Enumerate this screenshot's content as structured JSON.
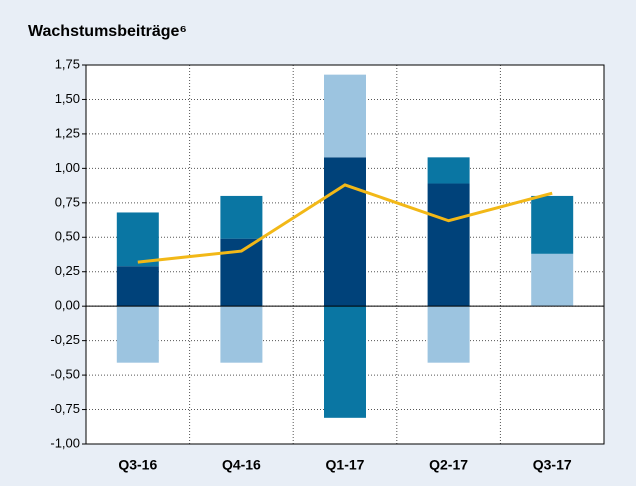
{
  "chart_data": {
    "type": "bar",
    "stacked": true,
    "title": "Wachstumsbeiträge⁶",
    "categories": [
      "Q3-16",
      "Q4-16",
      "Q1-17",
      "Q2-17",
      "Q3-17"
    ],
    "series": [
      {
        "color": "#00427a",
        "values": [
          0.29,
          0.49,
          1.08,
          0.89,
          0
        ]
      },
      {
        "color": "#9cc4e0",
        "values": [
          -0.41,
          -0.41,
          0.6,
          -0.41,
          0.38
        ]
      },
      {
        "color": "#0a76a3",
        "values": [
          0.39,
          0.31,
          -0.81,
          0.19,
          0.42
        ]
      },
      {
        "type": "line",
        "color": "#f2b817",
        "values": [
          0.32,
          0.4,
          0.88,
          0.62,
          0.82
        ]
      }
    ],
    "ylim": [
      -1,
      1.75
    ],
    "yticks": [
      {
        "value": -1,
        "label": "-1,00"
      },
      {
        "value": -0.75,
        "label": "-0,75"
      },
      {
        "value": -0.5,
        "label": "-0,50"
      },
      {
        "value": -0.25,
        "label": "-0,25"
      },
      {
        "value": 0,
        "label": "0,00"
      },
      {
        "value": 0.25,
        "label": "0,25"
      },
      {
        "value": 0.5,
        "label": "0,50"
      },
      {
        "value": 0.75,
        "label": "0,75"
      },
      {
        "value": 1,
        "label": "1,00"
      },
      {
        "value": 1.25,
        "label": "1,25"
      },
      {
        "value": 1.5,
        "label": "1,50"
      },
      {
        "value": 1.75,
        "label": "1,75"
      }
    ],
    "grid": true
  }
}
